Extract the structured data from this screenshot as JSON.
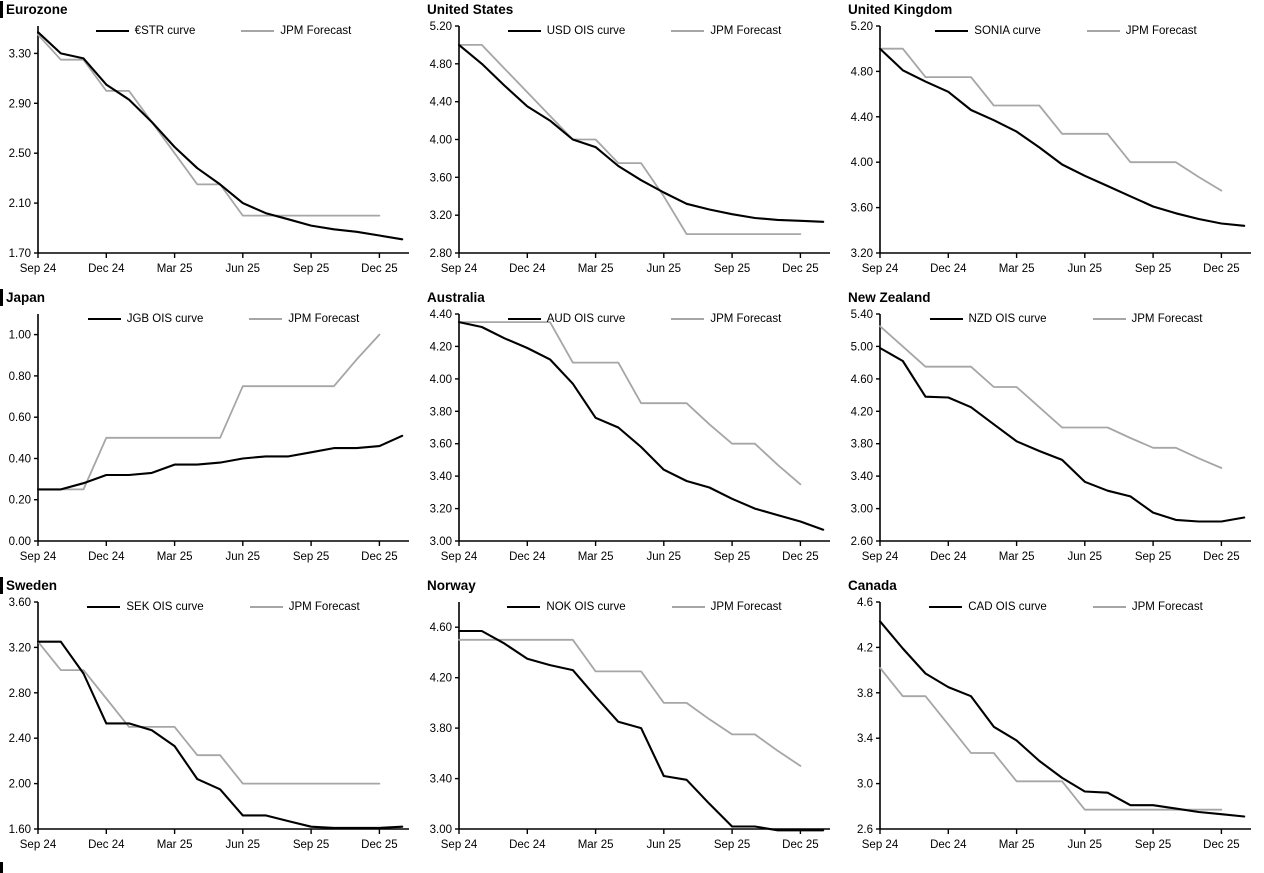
{
  "page": {
    "background": "#ffffff"
  },
  "style": {
    "axis_color": "#000000",
    "market_line_color": "#000000",
    "forecast_line_color": "#a6a6a6"
  },
  "chart_data": [
    {
      "region": "Eurozone",
      "type": "line",
      "x_tick_labels": [
        "Sep 24",
        "Dec 24",
        "Mar 25",
        "Jun 25",
        "Sep 25",
        "Dec 25"
      ],
      "x_tick_positions": [
        0,
        3,
        6,
        9,
        12,
        15
      ],
      "x_domain": [
        0,
        16.3
      ],
      "ylim": [
        1.7,
        3.52
      ],
      "yticks": [
        1.7,
        2.1,
        2.5,
        2.9,
        3.3
      ],
      "ytick_labels": [
        "1.70",
        "2.10",
        "2.50",
        "2.90",
        "3.30"
      ],
      "legend_position": "top-center",
      "grid": false,
      "series": [
        {
          "name": "€STR curve",
          "color": "#000000",
          "width": 2.1,
          "values": [
            3.47,
            3.3,
            3.26,
            3.05,
            2.93,
            2.75,
            2.55,
            2.38,
            2.25,
            2.1,
            2.02,
            1.97,
            1.92,
            1.89,
            1.87,
            1.84,
            1.81
          ]
        },
        {
          "name": "JPM Forecast",
          "color": "#a6a6a6",
          "width": 1.8,
          "values": [
            3.45,
            3.25,
            3.25,
            3.0,
            3.0,
            2.75,
            2.5,
            2.25,
            2.25,
            2.0,
            2.0,
            2.0,
            2.0,
            2.0,
            2.0,
            2.0
          ]
        }
      ]
    },
    {
      "region": "United States",
      "type": "line",
      "x_tick_labels": [
        "Sep 24",
        "Dec 24",
        "Mar 25",
        "Jun 25",
        "Sep 25",
        "Dec 25"
      ],
      "x_tick_positions": [
        0,
        3,
        6,
        9,
        12,
        15
      ],
      "x_domain": [
        0,
        16.3
      ],
      "ylim": [
        2.8,
        5.2
      ],
      "yticks": [
        2.8,
        3.2,
        3.6,
        4.0,
        4.4,
        4.8,
        5.2
      ],
      "ytick_labels": [
        "2.80",
        "3.20",
        "3.60",
        "4.00",
        "4.40",
        "4.80",
        "5.20"
      ],
      "legend_position": "top-center",
      "grid": false,
      "series": [
        {
          "name": "USD OIS curve",
          "color": "#000000",
          "width": 2.1,
          "values": [
            5.0,
            4.8,
            4.57,
            4.35,
            4.2,
            4.0,
            3.92,
            3.72,
            3.57,
            3.44,
            3.32,
            3.26,
            3.21,
            3.17,
            3.15,
            3.14,
            3.13
          ]
        },
        {
          "name": "JPM Forecast",
          "color": "#a6a6a6",
          "width": 1.8,
          "values": [
            5.0,
            5.0,
            4.75,
            4.5,
            4.25,
            4.0,
            4.0,
            3.75,
            3.75,
            3.4,
            3.0,
            3.0,
            3.0,
            3.0,
            3.0,
            3.0
          ]
        }
      ]
    },
    {
      "region": "United Kingdom",
      "type": "line",
      "x_tick_labels": [
        "Sep 24",
        "Dec 24",
        "Mar 25",
        "Jun 25",
        "Sep 25",
        "Dec 25"
      ],
      "x_tick_positions": [
        0,
        3,
        6,
        9,
        12,
        15
      ],
      "x_domain": [
        0,
        16.3
      ],
      "ylim": [
        3.2,
        5.2
      ],
      "yticks": [
        3.2,
        3.6,
        4.0,
        4.4,
        4.8,
        5.2
      ],
      "ytick_labels": [
        "3.20",
        "3.60",
        "4.00",
        "4.40",
        "4.80",
        "5.20"
      ],
      "legend_position": "top-center",
      "grid": false,
      "series": [
        {
          "name": "SONIA curve",
          "color": "#000000",
          "width": 2.1,
          "values": [
            5.0,
            4.81,
            4.71,
            4.62,
            4.46,
            4.37,
            4.27,
            4.13,
            3.98,
            3.88,
            3.79,
            3.7,
            3.61,
            3.55,
            3.5,
            3.46,
            3.44
          ]
        },
        {
          "name": "JPM Forecast",
          "color": "#a6a6a6",
          "width": 1.8,
          "values": [
            5.0,
            5.0,
            4.75,
            4.75,
            4.75,
            4.5,
            4.5,
            4.5,
            4.25,
            4.25,
            4.25,
            4.0,
            4.0,
            4.0,
            3.87,
            3.75
          ]
        }
      ]
    },
    {
      "region": "Japan",
      "type": "line",
      "x_tick_labels": [
        "Sep 24",
        "Dec 24",
        "Mar 25",
        "Jun 25",
        "Sep 25",
        "Dec 25"
      ],
      "x_tick_positions": [
        0,
        3,
        6,
        9,
        12,
        15
      ],
      "x_domain": [
        0,
        16.3
      ],
      "ylim": [
        0.0,
        1.1
      ],
      "yticks": [
        0.0,
        0.2,
        0.4,
        0.6,
        0.8,
        1.0
      ],
      "ytick_labels": [
        "0.00",
        "0.20",
        "0.40",
        "0.60",
        "0.80",
        "1.00"
      ],
      "legend_position": "top-center",
      "grid": false,
      "series": [
        {
          "name": "JGB OIS curve",
          "color": "#000000",
          "width": 2.1,
          "values": [
            0.25,
            0.25,
            0.28,
            0.32,
            0.32,
            0.33,
            0.37,
            0.37,
            0.38,
            0.4,
            0.41,
            0.41,
            0.43,
            0.45,
            0.45,
            0.46,
            0.51
          ]
        },
        {
          "name": "JPM Forecast",
          "color": "#a6a6a6",
          "width": 1.8,
          "values": [
            0.25,
            0.25,
            0.25,
            0.5,
            0.5,
            0.5,
            0.5,
            0.5,
            0.5,
            0.75,
            0.75,
            0.75,
            0.75,
            0.75,
            0.88,
            1.0
          ]
        }
      ]
    },
    {
      "region": "Australia",
      "type": "line",
      "x_tick_labels": [
        "Sep 24",
        "Dec 24",
        "Mar 25",
        "Jun 25",
        "Sep 25",
        "Dec 25"
      ],
      "x_tick_positions": [
        0,
        3,
        6,
        9,
        12,
        15
      ],
      "x_domain": [
        0,
        16.3
      ],
      "ylim": [
        3.0,
        4.4
      ],
      "yticks": [
        3.0,
        3.2,
        3.4,
        3.6,
        3.8,
        4.0,
        4.2,
        4.4
      ],
      "ytick_labels": [
        "3.00",
        "3.20",
        "3.40",
        "3.60",
        "3.80",
        "4.00",
        "4.20",
        "4.40"
      ],
      "legend_position": "top-center",
      "grid": false,
      "series": [
        {
          "name": "AUD OIS curve",
          "color": "#000000",
          "width": 2.1,
          "values": [
            4.35,
            4.32,
            4.25,
            4.19,
            4.12,
            3.97,
            3.76,
            3.7,
            3.58,
            3.44,
            3.37,
            3.33,
            3.26,
            3.2,
            3.16,
            3.12,
            3.07
          ]
        },
        {
          "name": "JPM Forecast",
          "color": "#a6a6a6",
          "width": 1.8,
          "values": [
            4.35,
            4.35,
            4.35,
            4.35,
            4.35,
            4.1,
            4.1,
            4.1,
            3.85,
            3.85,
            3.85,
            3.72,
            3.6,
            3.6,
            3.47,
            3.35
          ]
        }
      ]
    },
    {
      "region": "New Zealand",
      "type": "line",
      "x_tick_labels": [
        "Sep 24",
        "Dec 24",
        "Mar 25",
        "Jun 25",
        "Sep 25",
        "Dec 25"
      ],
      "x_tick_positions": [
        0,
        3,
        6,
        9,
        12,
        15
      ],
      "x_domain": [
        0,
        16.3
      ],
      "ylim": [
        2.6,
        5.4
      ],
      "yticks": [
        2.6,
        3.0,
        3.4,
        3.8,
        4.2,
        4.6,
        5.0,
        5.4
      ],
      "ytick_labels": [
        "2.60",
        "3.00",
        "3.40",
        "3.80",
        "4.20",
        "4.60",
        "5.00",
        "5.40"
      ],
      "legend_position": "top-center",
      "grid": false,
      "series": [
        {
          "name": "NZD OIS curve",
          "color": "#000000",
          "width": 2.1,
          "values": [
            4.98,
            4.82,
            4.38,
            4.37,
            4.25,
            4.04,
            3.83,
            3.71,
            3.6,
            3.33,
            3.22,
            3.15,
            2.95,
            2.86,
            2.84,
            2.84,
            2.89
          ]
        },
        {
          "name": "JPM Forecast",
          "color": "#a6a6a6",
          "width": 1.8,
          "values": [
            5.25,
            5.0,
            4.75,
            4.75,
            4.75,
            4.5,
            4.5,
            4.25,
            4.0,
            4.0,
            4.0,
            3.87,
            3.75,
            3.75,
            3.62,
            3.5
          ]
        }
      ]
    },
    {
      "region": "Sweden",
      "type": "line",
      "x_tick_labels": [
        "Sep 24",
        "Dec 24",
        "Mar 25",
        "Jun 25",
        "Sep 25",
        "Dec 25"
      ],
      "x_tick_positions": [
        0,
        3,
        6,
        9,
        12,
        15
      ],
      "x_domain": [
        0,
        16.3
      ],
      "ylim": [
        1.6,
        3.6
      ],
      "yticks": [
        1.6,
        2.0,
        2.4,
        2.8,
        3.2,
        3.6
      ],
      "ytick_labels": [
        "1.60",
        "2.00",
        "2.40",
        "2.80",
        "3.20",
        "3.60"
      ],
      "legend_position": "top-center",
      "grid": false,
      "series": [
        {
          "name": "SEK OIS curve",
          "color": "#000000",
          "width": 2.1,
          "values": [
            3.25,
            3.25,
            2.97,
            2.53,
            2.53,
            2.47,
            2.33,
            2.04,
            1.95,
            1.72,
            1.72,
            1.67,
            1.62,
            1.61,
            1.61,
            1.61,
            1.62
          ]
        },
        {
          "name": "JPM Forecast",
          "color": "#a6a6a6",
          "width": 1.8,
          "values": [
            3.25,
            3.0,
            3.0,
            2.75,
            2.5,
            2.5,
            2.5,
            2.25,
            2.25,
            2.0,
            2.0,
            2.0,
            2.0,
            2.0,
            2.0,
            2.0
          ]
        }
      ]
    },
    {
      "region": "Norway",
      "type": "line",
      "x_tick_labels": [
        "Sep 24",
        "Dec 24",
        "Mar 25",
        "Jun 25",
        "Sep 25",
        "Dec 25"
      ],
      "x_tick_positions": [
        0,
        3,
        6,
        9,
        12,
        15
      ],
      "x_domain": [
        0,
        16.3
      ],
      "ylim": [
        3.0,
        4.8
      ],
      "yticks": [
        3.0,
        3.4,
        3.8,
        4.2,
        4.6
      ],
      "ytick_labels": [
        "3.00",
        "3.40",
        "3.80",
        "4.20",
        "4.60"
      ],
      "legend_position": "top-center",
      "grid": false,
      "series": [
        {
          "name": "NOK OIS curve",
          "color": "#000000",
          "width": 2.1,
          "values": [
            4.57,
            4.57,
            4.47,
            4.35,
            4.3,
            4.26,
            4.05,
            3.85,
            3.8,
            3.42,
            3.39,
            3.2,
            3.02,
            3.02,
            2.99,
            2.99,
            2.99
          ]
        },
        {
          "name": "JPM Forecast",
          "color": "#a6a6a6",
          "width": 1.8,
          "values": [
            4.5,
            4.5,
            4.5,
            4.5,
            4.5,
            4.5,
            4.25,
            4.25,
            4.25,
            4.0,
            4.0,
            3.87,
            3.75,
            3.75,
            3.62,
            3.5
          ]
        }
      ]
    },
    {
      "region": "Canada",
      "type": "line",
      "x_tick_labels": [
        "Sep 24",
        "Dec 24",
        "Mar 25",
        "Jun 25",
        "Sep 25",
        "Dec 25"
      ],
      "x_tick_positions": [
        0,
        3,
        6,
        9,
        12,
        15
      ],
      "x_domain": [
        0,
        16.3
      ],
      "ylim": [
        2.6,
        4.6
      ],
      "yticks": [
        2.6,
        3.0,
        3.4,
        3.8,
        4.2,
        4.6
      ],
      "ytick_labels": [
        "2.6",
        "3.0",
        "3.4",
        "3.8",
        "4.2",
        "4.6"
      ],
      "legend_position": "top-center",
      "grid": false,
      "series": [
        {
          "name": "CAD OIS curve",
          "color": "#000000",
          "width": 2.1,
          "values": [
            4.43,
            4.19,
            3.97,
            3.85,
            3.77,
            3.5,
            3.38,
            3.2,
            3.05,
            2.93,
            2.92,
            2.81,
            2.81,
            2.78,
            2.75,
            2.73,
            2.71
          ]
        },
        {
          "name": "JPM Forecast",
          "color": "#a6a6a6",
          "width": 1.8,
          "values": [
            4.02,
            3.77,
            3.77,
            3.52,
            3.27,
            3.27,
            3.02,
            3.02,
            3.02,
            2.77,
            2.77,
            2.77,
            2.77,
            2.77,
            2.77,
            2.77
          ]
        }
      ]
    }
  ]
}
